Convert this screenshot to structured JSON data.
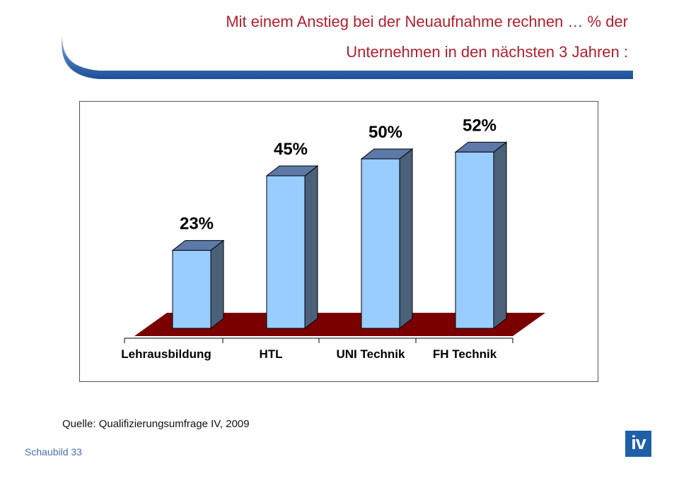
{
  "header": {
    "title_line1": "Mit einem Anstieg bei der Neuaufnahme  rechnen … % der",
    "title_line2": "Unternehmen  in den nächsten 3 Jahren :"
  },
  "chart_data": {
    "type": "bar",
    "categories": [
      "Lehrausbildung",
      "HTL",
      "UNI Technik",
      "FH Technik"
    ],
    "values": [
      23,
      45,
      50,
      52
    ],
    "data_labels": [
      "23%",
      "45%",
      "50%",
      "52%"
    ],
    "title": "",
    "xlabel": "",
    "ylabel": "",
    "ylim": [
      0,
      60
    ],
    "grid": false,
    "legend": "none",
    "style": "3d"
  },
  "source": "Quelle: Qualifizierungsumfrage IV, 2009",
  "footer": "Schaubild 33",
  "logo": {
    "text": "iv"
  },
  "colors": {
    "title": "#b0202e",
    "bar_front": "#99ccff",
    "bar_side": "#4a6179",
    "bar_top": "#5c79a8",
    "floor": "#7a0000",
    "swoosh": "#2a5aa0",
    "logo": "#1e5fa8",
    "footer": "#4a6fb0"
  }
}
